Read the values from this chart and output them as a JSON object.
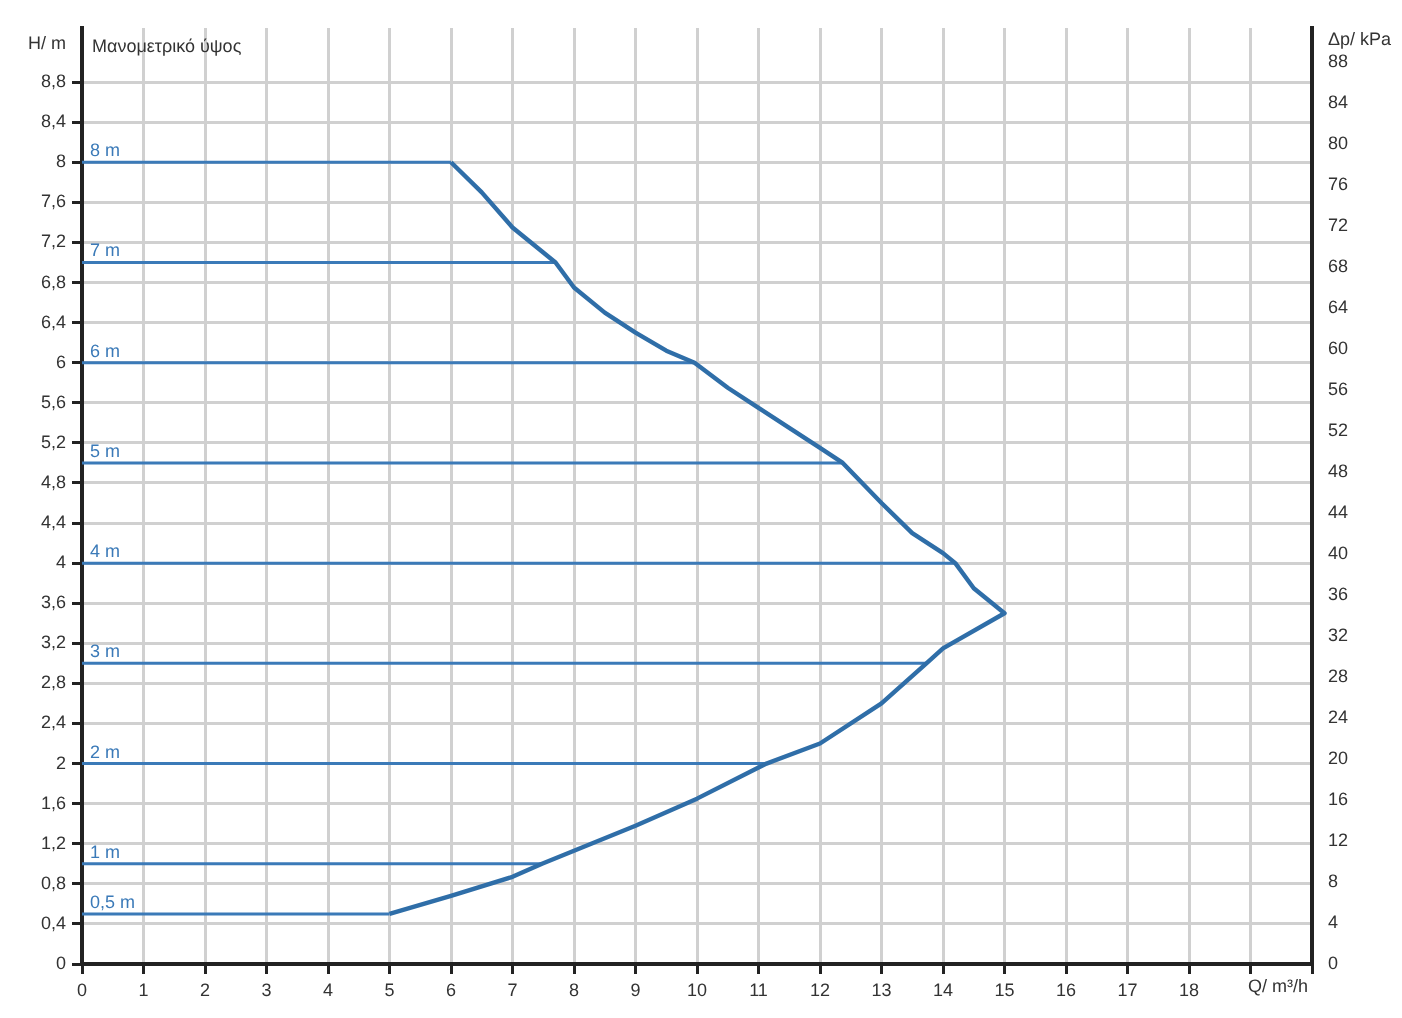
{
  "chart_data": {
    "type": "line",
    "title": "Μανομετρικό ύψος",
    "xlabel": "Q/ m³/h",
    "ylabel": "H/ m",
    "y2label": "Δp/ kPa",
    "xlim": [
      0,
      20.0
    ],
    "xticks": [
      0,
      1,
      2,
      3,
      4,
      5,
      6,
      7,
      8,
      9,
      10,
      11,
      12,
      13,
      14,
      15,
      16,
      17,
      18,
      {
        "value": 19,
        "label": null
      },
      {
        "value": 20,
        "label": null
      }
    ],
    "ylim": [
      0,
      9.34
    ],
    "yticks": [
      0,
      {
        "value": 0.4,
        "label": "0,4"
      },
      {
        "value": 0.8,
        "label": "0,8"
      },
      {
        "value": 1.2,
        "label": "1,2"
      },
      {
        "value": 1.6,
        "label": "1,6"
      },
      2,
      {
        "value": 2.4,
        "label": "2,4"
      },
      {
        "value": 2.8,
        "label": "2,8"
      },
      {
        "value": 3.2,
        "label": "3,2"
      },
      {
        "value": 3.6,
        "label": "3,6"
      },
      4,
      {
        "value": 4.4,
        "label": "4,4"
      },
      {
        "value": 4.8,
        "label": "4,8"
      },
      {
        "value": 5.2,
        "label": "5,2"
      },
      {
        "value": 5.6,
        "label": "5,6"
      },
      6,
      {
        "value": 6.4,
        "label": "6,4"
      },
      {
        "value": 6.8,
        "label": "6,8"
      },
      {
        "value": 7.2,
        "label": "7,2"
      },
      {
        "value": 7.6,
        "label": "7,6"
      },
      8,
      {
        "value": 8.4,
        "label": "8,4"
      },
      {
        "value": 8.8,
        "label": "8,8"
      }
    ],
    "y2lim": [
      0,
      91.3
    ],
    "y2ticks": [
      0,
      4,
      8,
      12,
      16,
      20,
      24,
      28,
      32,
      36,
      40,
      44,
      48,
      52,
      56,
      60,
      64,
      68,
      72,
      76,
      80,
      84,
      88
    ],
    "grid": true,
    "legend": false,
    "marker": "none",
    "line_style": "solid",
    "series": [
      {
        "color": "#2f6ea8",
        "x": [
          6,
          6.5,
          7,
          7.5,
          7.7,
          8,
          8.5,
          9,
          9.5,
          9.96,
          10.5,
          11,
          11.5,
          12,
          12.37,
          13,
          13.5,
          14,
          14.2,
          14.5,
          15,
          14,
          13.73,
          13,
          12,
          11.13,
          10,
          9,
          8,
          7.48,
          7,
          6,
          5
        ],
        "values": [
          8,
          7.7,
          7.35,
          7.1,
          7,
          6.75,
          6.5,
          6.3,
          6.12,
          6,
          5.75,
          5.55,
          5.35,
          5.15,
          5,
          4.6,
          4.3,
          4.1,
          4,
          3.75,
          3.5,
          3.15,
          3,
          2.6,
          2.2,
          2,
          1.65,
          1.38,
          1.13,
          1,
          0.87,
          0.68,
          0.5
        ]
      },
      {
        "name": "8 m",
        "color": "#3b7ab8",
        "x": [
          0,
          6
        ],
        "values": [
          8,
          8
        ]
      },
      {
        "name": "7 m",
        "color": "#3b7ab8",
        "x": [
          0,
          7.7
        ],
        "values": [
          7,
          7
        ]
      },
      {
        "name": "6 m",
        "color": "#3b7ab8",
        "x": [
          0,
          9.96
        ],
        "values": [
          6,
          6
        ]
      },
      {
        "name": "5 m",
        "color": "#3b7ab8",
        "x": [
          0,
          12.37
        ],
        "values": [
          5,
          5
        ]
      },
      {
        "name": "4 m",
        "color": "#3b7ab8",
        "x": [
          0,
          14.2
        ],
        "values": [
          4,
          4
        ]
      },
      {
        "name": "3 m",
        "color": "#3b7ab8",
        "x": [
          0,
          13.73
        ],
        "values": [
          3,
          3
        ]
      },
      {
        "name": "2 m",
        "color": "#3b7ab8",
        "x": [
          0,
          11.13
        ],
        "values": [
          2,
          2
        ]
      },
      {
        "name": "1 m",
        "color": "#3b7ab8",
        "x": [
          0,
          7.48
        ],
        "values": [
          1,
          1
        ]
      },
      {
        "name": "0,5 m",
        "color": "#3b7ab8",
        "x": [
          0,
          5
        ],
        "values": [
          0.5,
          0.5
        ]
      }
    ]
  }
}
